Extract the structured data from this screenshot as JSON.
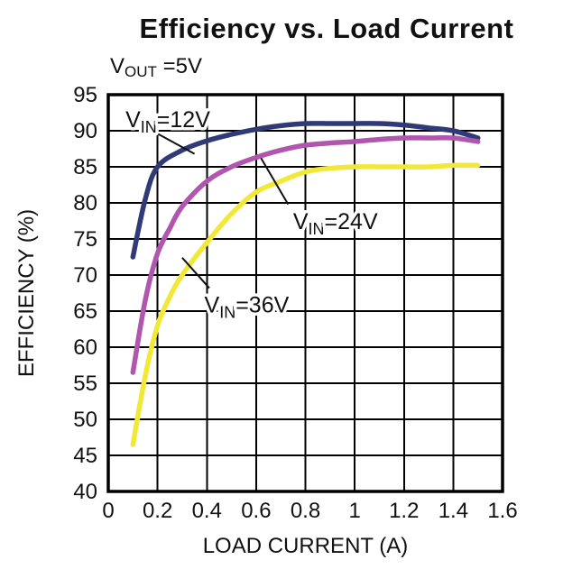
{
  "title": "Efficiency vs. Load Current",
  "subtitle": {
    "pre": "V",
    "sub": "OUT",
    "post": " =5V"
  },
  "chart_data": {
    "type": "line",
    "title": "Efficiency vs. Load Current",
    "subtitle": "VOUT =5V",
    "xlabel": "LOAD CURRENT (A)",
    "ylabel": "EFFICIENCY (%)",
    "xlim": [
      0,
      1.6
    ],
    "ylim": [
      40,
      95
    ],
    "grid": true,
    "legend_position": "inline-annotations",
    "xticks": [
      0,
      0.2,
      0.4,
      0.6,
      0.8,
      1,
      1.2,
      1.4,
      1.6
    ],
    "xtick_labels": [
      "0",
      "0.2",
      "0.4",
      "0.6",
      "0.8",
      "1",
      "1.2",
      "1.4",
      "1.6"
    ],
    "yticks": [
      40,
      45,
      50,
      55,
      60,
      65,
      70,
      75,
      80,
      85,
      90,
      95
    ],
    "ytick_labels": [
      "40",
      "45",
      "50",
      "55",
      "60",
      "65",
      "70",
      "75",
      "80",
      "85",
      "90",
      "95"
    ],
    "series": [
      {
        "name": "VIN=12V",
        "color": "#303a76",
        "points": [
          [
            0.1,
            72.5
          ],
          [
            0.15,
            80.5
          ],
          [
            0.2,
            85
          ],
          [
            0.3,
            87.3
          ],
          [
            0.4,
            88.6
          ],
          [
            0.5,
            89.5
          ],
          [
            0.6,
            90.2
          ],
          [
            0.7,
            90.7
          ],
          [
            0.8,
            91
          ],
          [
            0.9,
            91
          ],
          [
            1.0,
            91
          ],
          [
            1.1,
            91
          ],
          [
            1.2,
            90.8
          ],
          [
            1.3,
            90.4
          ],
          [
            1.4,
            90
          ],
          [
            1.5,
            89
          ]
        ]
      },
      {
        "name": "VIN=24V",
        "color": "#b056ae",
        "points": [
          [
            0.1,
            56.5
          ],
          [
            0.15,
            66.5
          ],
          [
            0.2,
            73
          ],
          [
            0.25,
            76.5
          ],
          [
            0.3,
            79.5
          ],
          [
            0.4,
            83
          ],
          [
            0.5,
            85
          ],
          [
            0.6,
            86.3
          ],
          [
            0.7,
            87.3
          ],
          [
            0.8,
            88
          ],
          [
            0.9,
            88.3
          ],
          [
            1.0,
            88.5
          ],
          [
            1.1,
            88.8
          ],
          [
            1.2,
            89
          ],
          [
            1.3,
            89
          ],
          [
            1.4,
            89
          ],
          [
            1.5,
            88.5
          ]
        ]
      },
      {
        "name": "VIN=36V",
        "color": "#f2e838",
        "points": [
          [
            0.1,
            46.5
          ],
          [
            0.15,
            56
          ],
          [
            0.2,
            63
          ],
          [
            0.25,
            67
          ],
          [
            0.3,
            70
          ],
          [
            0.4,
            74.5
          ],
          [
            0.5,
            78.5
          ],
          [
            0.6,
            81.5
          ],
          [
            0.7,
            83
          ],
          [
            0.8,
            84.3
          ],
          [
            0.9,
            84.8
          ],
          [
            1.0,
            85
          ],
          [
            1.1,
            85
          ],
          [
            1.2,
            85
          ],
          [
            1.3,
            85
          ],
          [
            1.4,
            85.2
          ],
          [
            1.5,
            85.2
          ]
        ]
      }
    ],
    "annotations": [
      {
        "parts": {
          "pre": "V",
          "sub": "IN",
          "post": "=12V"
        },
        "text_x": 0.07,
        "text_y": 90.5,
        "leader": [
          [
            0.2,
            89.6
          ],
          [
            0.35,
            86.8
          ]
        ]
      },
      {
        "parts": {
          "pre": "V",
          "sub": "IN",
          "post": "=24V"
        },
        "text_x": 0.75,
        "text_y": 76.4,
        "leader": [
          [
            0.73,
            79.8
          ],
          [
            0.62,
            86.2
          ]
        ]
      },
      {
        "parts": {
          "pre": "V",
          "sub": "IN",
          "post": "=36V"
        },
        "text_x": 0.39,
        "text_y": 64.8,
        "leader": [
          [
            0.41,
            68.2
          ],
          [
            0.3,
            72.4
          ]
        ]
      }
    ],
    "style": {
      "grid_color": "#000000",
      "border_color": "#000000",
      "text_color": "#111111"
    }
  }
}
